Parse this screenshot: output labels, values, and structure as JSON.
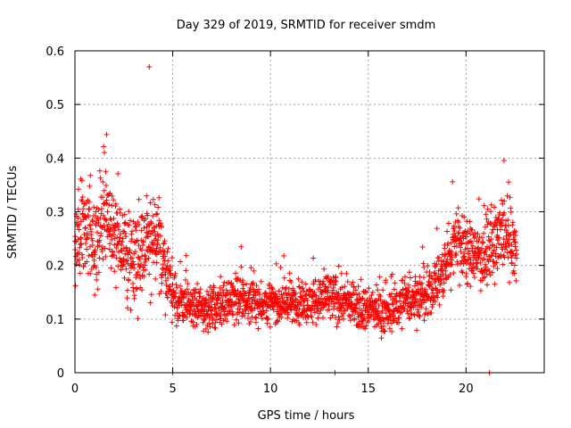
{
  "chart_data": {
    "type": "scatter",
    "title": "Day 329 of 2019, SRMTID for receiver smdm",
    "xlabel": "GPS time / hours",
    "ylabel": "SRMTID / TECUs",
    "xlim": [
      0,
      24
    ],
    "ylim": [
      0,
      0.6
    ],
    "xticks": [
      0,
      5,
      10,
      15,
      20
    ],
    "yticks": [
      0,
      0.1,
      0.2,
      0.3,
      0.4,
      0.5,
      0.6
    ],
    "grid": true,
    "marker": "+",
    "series": [
      {
        "name": "SRMTID",
        "color": "#ff0000",
        "outliers": [
          [
            3.8,
            0.57
          ],
          [
            5.0,
            0.0
          ],
          [
            13.3,
            0.0
          ],
          [
            21.2,
            0.0
          ]
        ],
        "envelope": [
          {
            "x": 0.0,
            "y": 0.24,
            "spread": 0.08
          },
          {
            "x": 0.5,
            "y": 0.27,
            "spread": 0.09
          },
          {
            "x": 1.0,
            "y": 0.26,
            "spread": 0.1
          },
          {
            "x": 1.5,
            "y": 0.3,
            "spread": 0.11
          },
          {
            "x": 2.0,
            "y": 0.26,
            "spread": 0.09
          },
          {
            "x": 2.5,
            "y": 0.22,
            "spread": 0.08
          },
          {
            "x": 3.0,
            "y": 0.22,
            "spread": 0.09
          },
          {
            "x": 3.5,
            "y": 0.23,
            "spread": 0.09
          },
          {
            "x": 4.0,
            "y": 0.25,
            "spread": 0.1
          },
          {
            "x": 4.5,
            "y": 0.22,
            "spread": 0.09
          },
          {
            "x": 5.0,
            "y": 0.14,
            "spread": 0.05
          },
          {
            "x": 6.0,
            "y": 0.12,
            "spread": 0.04
          },
          {
            "x": 7.0,
            "y": 0.12,
            "spread": 0.04
          },
          {
            "x": 8.0,
            "y": 0.14,
            "spread": 0.05
          },
          {
            "x": 9.0,
            "y": 0.13,
            "spread": 0.04
          },
          {
            "x": 10.0,
            "y": 0.13,
            "spread": 0.04
          },
          {
            "x": 11.0,
            "y": 0.13,
            "spread": 0.04
          },
          {
            "x": 12.0,
            "y": 0.13,
            "spread": 0.04
          },
          {
            "x": 13.0,
            "y": 0.14,
            "spread": 0.05
          },
          {
            "x": 14.0,
            "y": 0.13,
            "spread": 0.04
          },
          {
            "x": 15.0,
            "y": 0.12,
            "spread": 0.04
          },
          {
            "x": 16.0,
            "y": 0.11,
            "spread": 0.04
          },
          {
            "x": 17.0,
            "y": 0.14,
            "spread": 0.05
          },
          {
            "x": 18.0,
            "y": 0.14,
            "spread": 0.05
          },
          {
            "x": 19.0,
            "y": 0.2,
            "spread": 0.06
          },
          {
            "x": 19.5,
            "y": 0.26,
            "spread": 0.08
          },
          {
            "x": 20.0,
            "y": 0.22,
            "spread": 0.06
          },
          {
            "x": 21.0,
            "y": 0.22,
            "spread": 0.06
          },
          {
            "x": 22.0,
            "y": 0.26,
            "spread": 0.09
          },
          {
            "x": 22.6,
            "y": 0.22,
            "spread": 0.06
          }
        ],
        "n_points": 2200,
        "x_range": [
          0.0,
          22.6
        ]
      }
    ]
  }
}
